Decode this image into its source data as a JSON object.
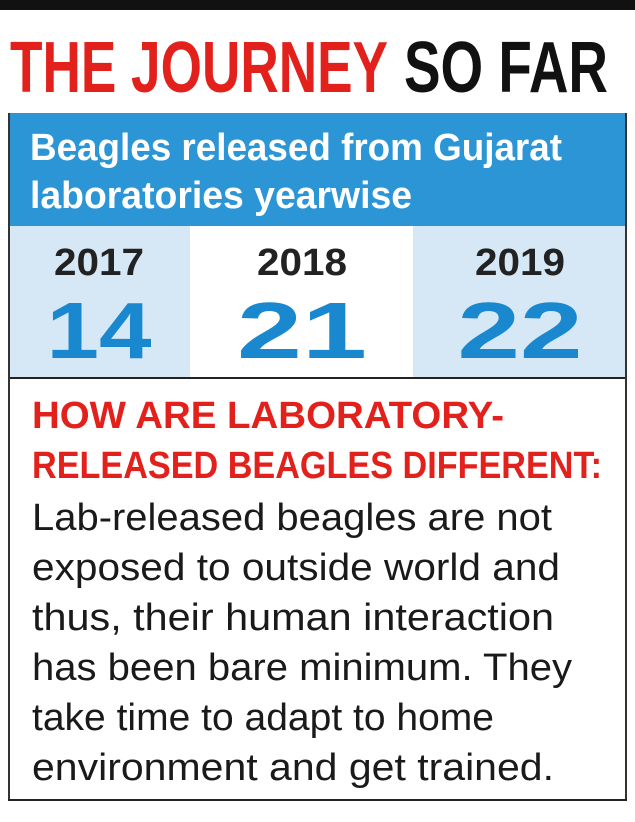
{
  "header": {
    "title_red": "THE JOURNEY",
    "title_black": "SO FAR"
  },
  "box": {
    "subtitle_lines": [
      "Beagles released from Gujarat",
      "laboratories yearwise"
    ]
  },
  "years": [
    {
      "year": 2017,
      "count": 14
    },
    {
      "year": 2018,
      "count": 21
    },
    {
      "year": 2019,
      "count": 22
    }
  ],
  "section": {
    "heading_lines": [
      "HOW ARE LABORATORY-",
      "RELEASED BEAGLES DIFFERENT:"
    ],
    "body_lines": [
      "Lab-released beagles are not",
      "exposed to outside world and",
      "thus, their human interaction",
      "has been bare minimum. They",
      "take time to adapt to home",
      "environment and get trained."
    ]
  }
}
